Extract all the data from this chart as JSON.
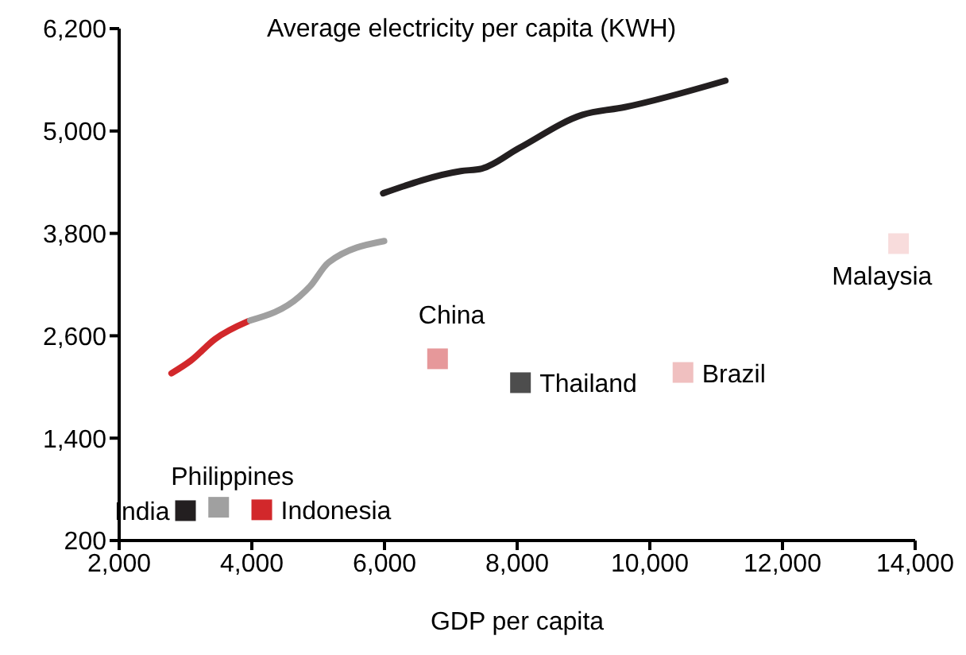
{
  "chart_data": {
    "type": "scatter",
    "title": "Average electricity per capita (KWH)",
    "xlabel": "GDP per capita",
    "series": [
      {
        "type": "line",
        "color": "#d2282b",
        "marker": "none",
        "x": [
          2789,
          3083,
          3443,
          3945
        ],
        "values": [
          2160,
          2310,
          2560,
          2770
        ]
      },
      {
        "type": "line",
        "color": "#a0a0a0",
        "marker": "none",
        "x": [
          3976,
          4718,
          4878,
          5158,
          5995
        ],
        "values": [
          2780,
          3060,
          3180,
          3460,
          3710
        ]
      },
      {
        "type": "line",
        "color": "#231f20",
        "marker": "none",
        "x": [
          5979,
          7150,
          7469,
          8029,
          8986,
          9624,
          11139
        ],
        "values": [
          4270,
          4530,
          4560,
          4800,
          5190,
          5280,
          5590
        ]
      },
      {
        "name": "India",
        "color": "#231f20",
        "x": [
          3000
        ],
        "values": [
          550
        ]
      },
      {
        "name": "Philippines",
        "color": "#a0a0a0",
        "x": [
          3500
        ],
        "values": [
          590
        ]
      },
      {
        "name": "Indonesia",
        "color": "#d2282b",
        "x": [
          4150
        ],
        "values": [
          560
        ]
      },
      {
        "name": "China",
        "color": "#e6989a",
        "x": [
          6800
        ],
        "values": [
          2330
        ]
      },
      {
        "name": "Thailand",
        "color": "#4d4d4d",
        "x": [
          8050
        ],
        "values": [
          2050
        ]
      },
      {
        "name": "Brazil",
        "color": "#f0c0c0",
        "x": [
          10500
        ],
        "values": [
          2170
        ]
      },
      {
        "name": "Malaysia",
        "color": "#f8dcdc",
        "x": [
          13750
        ],
        "values": [
          3680
        ]
      }
    ],
    "marker": "square",
    "xlim": [
      2000,
      14000
    ],
    "xticks": [
      {
        "value": 2000,
        "label": "2,000"
      },
      {
        "value": 4000,
        "label": "4,000"
      },
      {
        "value": 6000,
        "label": "6,000"
      },
      {
        "value": 8000,
        "label": "8,000"
      },
      {
        "value": 10000,
        "label": "10,000"
      },
      {
        "value": 12000,
        "label": "12,000"
      },
      {
        "value": 14000,
        "label": "14,000"
      }
    ],
    "ylim": [
      200,
      6200
    ],
    "yticks": [
      200,
      {
        "value": 1400,
        "label": "1,400"
      },
      {
        "value": 2600,
        "label": "2,600"
      },
      {
        "value": 3800,
        "label": "3,800"
      },
      {
        "value": 5000,
        "label": "5,000"
      },
      {
        "value": 6200,
        "label": "6,200"
      }
    ],
    "grid": false,
    "legend": false
  }
}
